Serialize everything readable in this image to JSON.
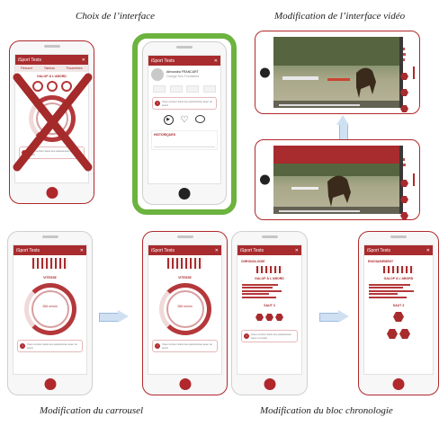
{
  "captions": {
    "top_left": "Choix de l’interface",
    "top_right": "Modification de l’interface vidéo",
    "bottom_left": "Modification du carrousel",
    "bottom_right": "Modification du bloc chronologie"
  },
  "app": {
    "title": "iSport Tests",
    "close_glyph": "✕",
    "tabs": [
      "Résumé",
      "Tableau",
      "Paramètres"
    ],
    "gauge_section": "VITESSE",
    "gauge_value": "256 m/min",
    "alert_text": "Vous rentrez dans les paramètres avec un écart",
    "profile_name": "Alexandra FRANCART",
    "profile_sub": "Orange Des Fondaines",
    "history_label": "HISTORIQUES",
    "chrono_label": "CHRONOLOGIE",
    "enchainement_label": "ENCHAINEMENT",
    "galop_label": "GALOP À L'ABORD",
    "saut_label": "SAUT 3"
  },
  "colors": {
    "brand_red": "#a82b2e",
    "highlight_green": "#6db33f",
    "arrow_blue": "#cfe0f2"
  }
}
